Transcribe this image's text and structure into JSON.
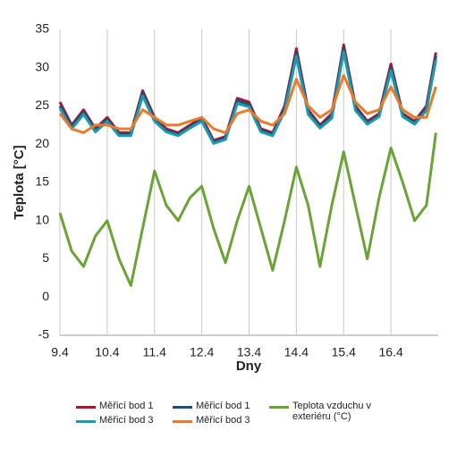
{
  "chart_data": {
    "type": "line",
    "xlabel": "Dny",
    "ylabel": "Teplota [°C]",
    "x": [
      0,
      0.25,
      0.5,
      0.75,
      1,
      1.25,
      1.5,
      1.75,
      2,
      2.25,
      2.5,
      2.75,
      3,
      3.25,
      3.5,
      3.75,
      4,
      4.25,
      4.5,
      4.75,
      5,
      5.25,
      5.5,
      5.75,
      6,
      6.25,
      6.5,
      6.75,
      7,
      7.25,
      7.5,
      7.75,
      7.95
    ],
    "xlim": [
      0,
      8
    ],
    "xticks": [
      {
        "value": 0,
        "label": "9.4"
      },
      {
        "value": 1,
        "label": "10.4"
      },
      {
        "value": 2,
        "label": "11.4"
      },
      {
        "value": 3,
        "label": "12.4"
      },
      {
        "value": 4,
        "label": "13.4"
      },
      {
        "value": 5,
        "label": "14.4"
      },
      {
        "value": 6,
        "label": "15.4"
      },
      {
        "value": 7,
        "label": "16.4"
      }
    ],
    "ylim": [
      -5,
      35
    ],
    "yticks": [
      -5,
      0,
      5,
      10,
      15,
      20,
      25,
      30,
      35
    ],
    "grid": "x",
    "series": [
      {
        "name": "Měřicí bod 1",
        "color": "#a8182f",
        "values": [
          25.5,
          22.5,
          24.5,
          22,
          23.5,
          21.5,
          21.5,
          27,
          23.5,
          22,
          21.5,
          22.5,
          23.5,
          20.5,
          21,
          26,
          25.5,
          22,
          21.5,
          25,
          32.5,
          24.5,
          22.5,
          24,
          33,
          25,
          23,
          24,
          30.5,
          24,
          23,
          25,
          32
        ]
      },
      {
        "name": "Měřicí bod 1",
        "color": "#1f4e79",
        "values": [
          25,
          22.3,
          24.2,
          21.8,
          23.2,
          21.3,
          21.3,
          26.7,
          23.2,
          21.8,
          21.3,
          22.3,
          23.2,
          20.3,
          20.8,
          25.7,
          25.2,
          21.8,
          21.3,
          24.7,
          32,
          24.2,
          22.3,
          23.7,
          32.6,
          24.7,
          22.8,
          23.8,
          30,
          23.8,
          22.8,
          24.7,
          31.5
        ]
      },
      {
        "name": "Teplota vzduchu v exteriéru (°C)",
        "color": "#6aa336",
        "values": [
          11,
          6,
          4,
          8,
          10,
          5,
          1.5,
          9,
          16.5,
          12,
          10,
          13,
          14.5,
          9,
          4.5,
          10,
          14.5,
          9,
          3.5,
          10,
          17,
          12,
          4,
          12,
          19,
          12,
          5,
          13,
          19.5,
          15,
          10,
          12,
          21.5
        ]
      },
      {
        "name": "Měřicí bod 3",
        "color": "#1d9aab",
        "values": [
          24.7,
          22,
          23.9,
          21.6,
          23,
          21.1,
          21.1,
          26.3,
          23,
          21.6,
          21.1,
          22.1,
          23,
          20.1,
          20.6,
          25.3,
          24.9,
          21.6,
          21.1,
          24.3,
          31.5,
          23.9,
          22.1,
          23.4,
          32.1,
          24.4,
          22.6,
          23.6,
          29.6,
          23.6,
          22.6,
          24.4,
          31
        ]
      },
      {
        "name": "Měřicí bod 3",
        "color": "#ea7a2c",
        "values": [
          24,
          22,
          21.5,
          22.5,
          22.5,
          22,
          22,
          24.5,
          23.5,
          22.5,
          22.5,
          23,
          23.5,
          22,
          21.5,
          24,
          24.5,
          23,
          22.5,
          24,
          28.5,
          25,
          23.5,
          24.5,
          29,
          25.5,
          24,
          24.5,
          27.5,
          24.5,
          23.5,
          23.5,
          27.5
        ]
      }
    ]
  }
}
